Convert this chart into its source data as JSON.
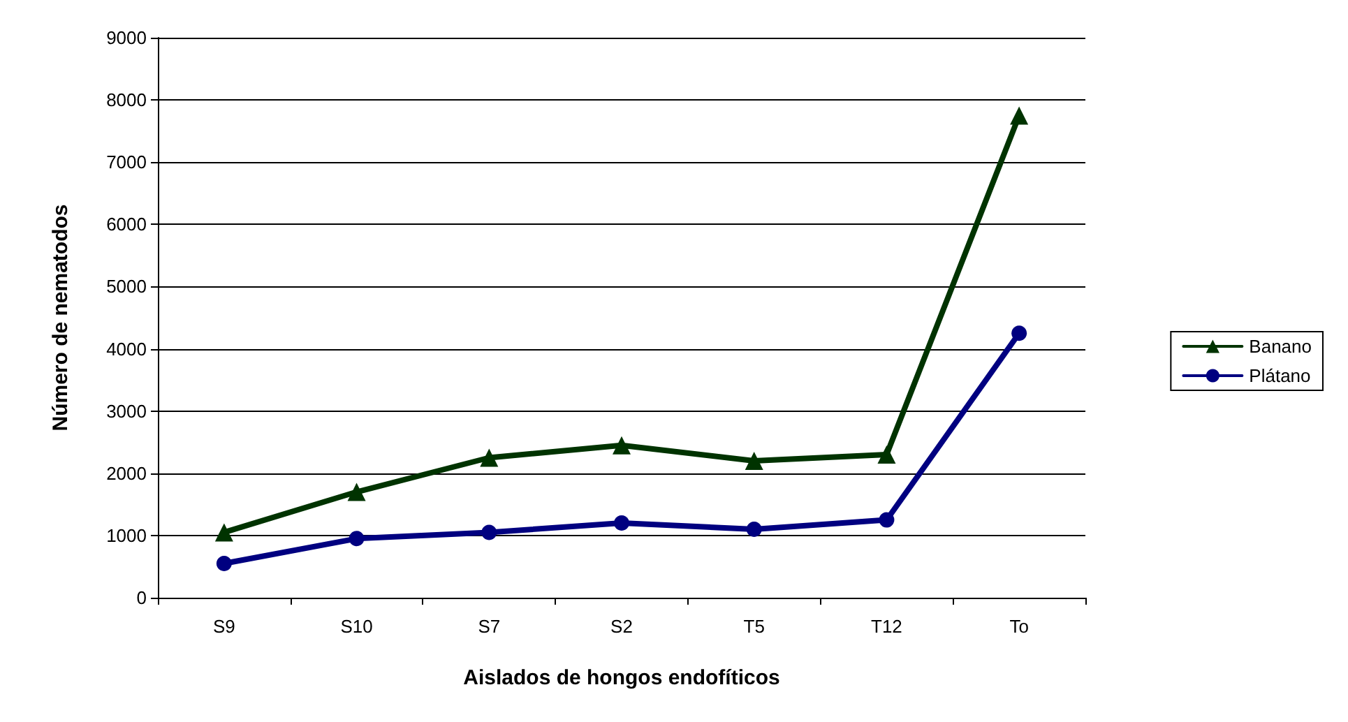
{
  "chart_data": {
    "type": "line",
    "xlabel": "Aislados de hongos endofíticos",
    "ylabel": "Número de nematodos",
    "categories": [
      "S9",
      "S10",
      "S7",
      "S2",
      "T5",
      "T12",
      "To"
    ],
    "series": [
      {
        "name": "Banano",
        "color": "#003300",
        "marker": "triangle",
        "values": [
          1050,
          1700,
          2250,
          2450,
          2200,
          2300,
          7750
        ]
      },
      {
        "name": "Plátano",
        "color": "#000080",
        "marker": "circle",
        "values": [
          550,
          950,
          1050,
          1200,
          1100,
          1250,
          4250
        ]
      }
    ],
    "ylim": [
      0,
      9000
    ],
    "yticks": [
      0,
      1000,
      2000,
      3000,
      4000,
      5000,
      6000,
      7000,
      8000,
      9000
    ],
    "grid": "y",
    "legend": "right"
  }
}
